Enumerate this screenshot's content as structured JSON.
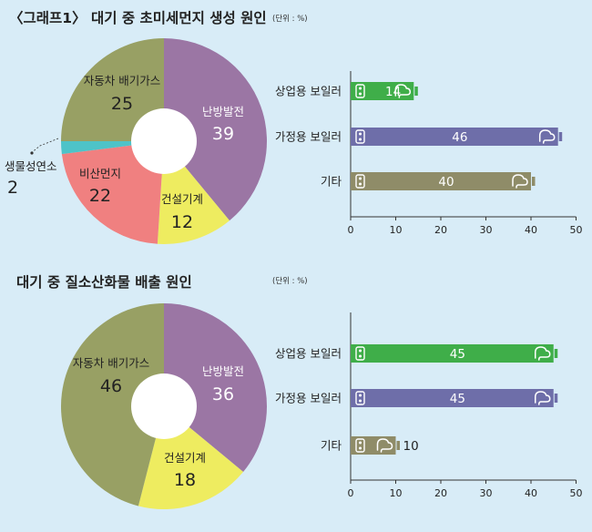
{
  "charts": {
    "title": "〈그래프1〉 대기 중 초미세먼지 생성 원인",
    "unit": "(단위 : %)"
  },
  "chart_data": [
    {
      "type": "pie",
      "title": "〈그래프1〉 대기 중 초미세먼지 생성 원인",
      "unit": "(단위 : %)",
      "slices": [
        {
          "label": "난방발전",
          "value": 39,
          "color": "#9b76a4"
        },
        {
          "label": "건설기계",
          "value": 12,
          "color": "#eeec60"
        },
        {
          "label": "비산먼지",
          "value": 22,
          "color": "#f08080"
        },
        {
          "label": "생물성연소",
          "value": 2,
          "color": "#4ec3c8"
        },
        {
          "label": "자동차 배기가스",
          "value": 25,
          "color": "#98a064"
        }
      ]
    },
    {
      "type": "bar",
      "orientation": "horizontal",
      "categories": [
        "상업용 보일러",
        "가정용 보일러",
        "기타"
      ],
      "values": [
        14,
        46,
        40
      ],
      "colors": [
        "#3fae49",
        "#6e6ea9",
        "#8f8c68"
      ],
      "xticks": [
        0,
        10,
        20,
        30,
        40,
        50
      ],
      "xlim": [
        0,
        50
      ]
    },
    {
      "type": "pie",
      "title": "대기 중 질소산화물 배출 원인",
      "unit": "(단위 : %)",
      "slices": [
        {
          "label": "난방발전",
          "value": 36,
          "color": "#9b76a4"
        },
        {
          "label": "건설기계",
          "value": 18,
          "color": "#eeec60"
        },
        {
          "label": "자동차 배기가스",
          "value": 46,
          "color": "#98a064"
        }
      ]
    },
    {
      "type": "bar",
      "orientation": "horizontal",
      "categories": [
        "상업용 보일러",
        "가정용 보일러",
        "기타"
      ],
      "values": [
        45,
        45,
        10
      ],
      "colors": [
        "#3fae49",
        "#6e6ea9",
        "#8f8c68"
      ],
      "xticks": [
        0,
        10,
        20,
        30,
        40,
        50
      ],
      "xlim": [
        0,
        50
      ]
    }
  ]
}
